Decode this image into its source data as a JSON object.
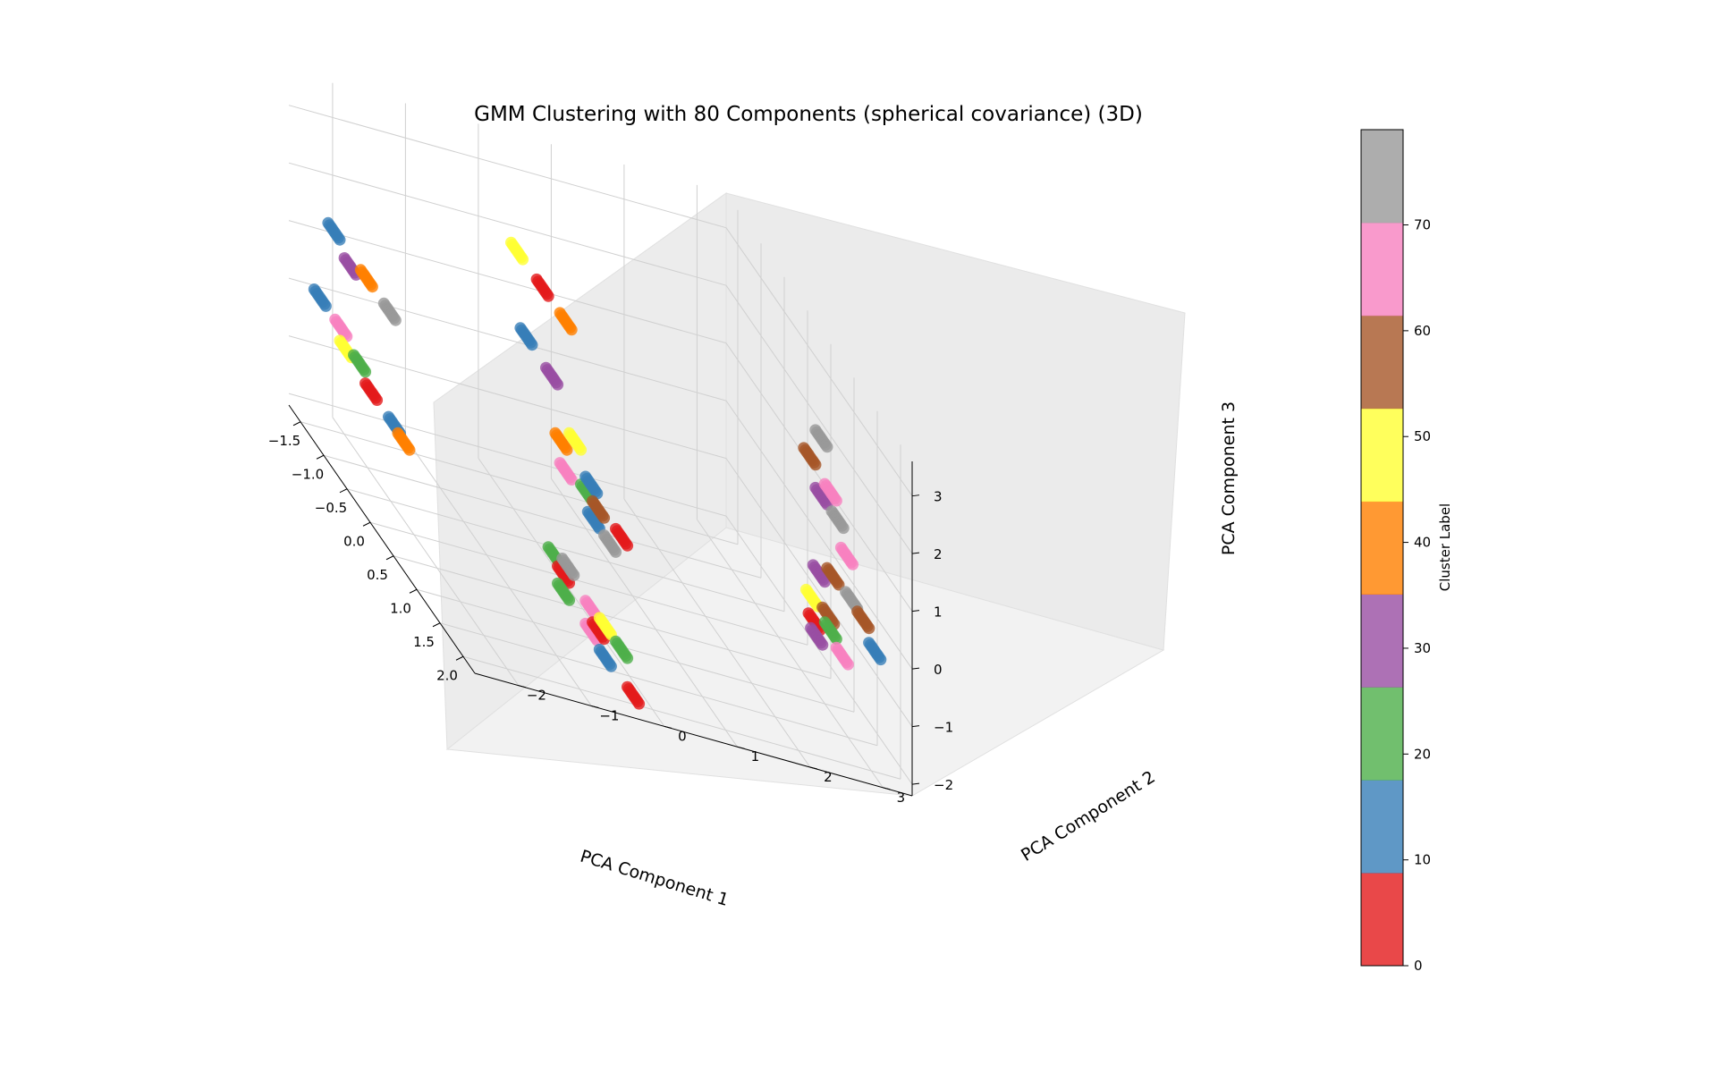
{
  "chart_data": {
    "type": "scatter",
    "projection": "3d",
    "title": "GMM Clustering with 80 Components (spherical covariance) (3D)",
    "xlabel": "PCA Component 1",
    "ylabel": "PCA Component 2",
    "zlabel": "PCA Component 3",
    "xlim": [
      -1.75,
      2.25
    ],
    "ylim": [
      -2.6,
      3.4
    ],
    "zlim": [
      -2.2,
      3.6
    ],
    "x_ticks": [
      -1.5,
      -1.0,
      -0.5,
      0.0,
      0.5,
      1.0,
      1.5,
      2.0
    ],
    "x_tick_labels": [
      "−1.5",
      "−1.0",
      "−0.5",
      "0.0",
      "0.5",
      "1.0",
      "1.5",
      "2.0"
    ],
    "y_ticks": [
      -2,
      -1,
      0,
      1,
      2,
      3
    ],
    "y_tick_labels": [
      "−2",
      "−1",
      "0",
      "1",
      "2",
      "3"
    ],
    "z_ticks": [
      -2,
      -1,
      0,
      1,
      2,
      3
    ],
    "z_tick_labels": [
      "−2",
      "−1",
      "0",
      "1",
      "2",
      "3"
    ],
    "grid": true,
    "colormap": "Set1",
    "colorbar": {
      "label": "Cluster Label",
      "range": [
        0,
        79
      ],
      "ticks": [
        0,
        10,
        20,
        30,
        40,
        50,
        60,
        70
      ],
      "tick_labels": [
        "0",
        "10",
        "20",
        "30",
        "40",
        "50",
        "60",
        "70"
      ],
      "colors": [
        "#e41a1c",
        "#377eb8",
        "#4daf4a",
        "#984ea3",
        "#ff7f00",
        "#ffff33",
        "#a65628",
        "#f781bf",
        "#999999"
      ]
    },
    "point_alpha": 0.8,
    "segments": [
      {
        "x": -1.25,
        "y": -2.3,
        "z": 1.5,
        "label": 15
      },
      {
        "x": -0.55,
        "y": -2.3,
        "z": 1.5,
        "label": 40
      },
      {
        "x": -0.05,
        "y": -2.3,
        "z": 1.5,
        "label": 75
      },
      {
        "x": -0.9,
        "y": -2.3,
        "z": 1.3,
        "label": 35
      },
      {
        "x": -1.55,
        "y": -2.3,
        "z": 0.0,
        "label": 15
      },
      {
        "x": -1.1,
        "y": -2.3,
        "z": 0.0,
        "label": 65
      },
      {
        "x": -0.7,
        "y": -2.3,
        "z": -0.15,
        "label": 25
      },
      {
        "x": -1.0,
        "y": -2.3,
        "z": -0.25,
        "label": 52
      },
      {
        "x": -0.45,
        "y": -2.3,
        "z": -0.35,
        "label": 5
      },
      {
        "x": 0.05,
        "y": -2.3,
        "z": -0.35,
        "label": 15
      },
      {
        "x": 0.25,
        "y": -2.3,
        "z": -0.4,
        "label": 40
      },
      {
        "x": -0.45,
        "y": -0.3,
        "z": 2.8,
        "label": 52
      },
      {
        "x": 0.1,
        "y": -0.3,
        "z": 2.8,
        "label": 5
      },
      {
        "x": 0.6,
        "y": -0.3,
        "z": 2.8,
        "label": 40
      },
      {
        "x": -0.25,
        "y": -0.3,
        "z": 1.55,
        "label": 15
      },
      {
        "x": 0.3,
        "y": -0.3,
        "z": 1.5,
        "label": 35
      },
      {
        "x": 0.8,
        "y": -0.3,
        "z": 0.95,
        "label": 52
      },
      {
        "x": 0.5,
        "y": -0.3,
        "z": 0.6,
        "label": 40
      },
      {
        "x": 1.15,
        "y": -0.3,
        "z": 0.6,
        "label": 15
      },
      {
        "x": 1.05,
        "y": -0.3,
        "z": 0.35,
        "label": 25
      },
      {
        "x": 0.6,
        "y": -0.3,
        "z": 0.2,
        "label": 65
      },
      {
        "x": 1.3,
        "y": -0.3,
        "z": 0.35,
        "label": 60
      },
      {
        "x": 1.8,
        "y": -0.3,
        "z": 0.45,
        "label": 5
      },
      {
        "x": 1.2,
        "y": -0.3,
        "z": 0.05,
        "label": 15
      },
      {
        "x": 1.55,
        "y": -0.3,
        "z": 0.05,
        "label": 75
      },
      {
        "x": 0.65,
        "y": -0.3,
        "z": -1.4,
        "label": 75
      },
      {
        "x": 0.35,
        "y": -0.3,
        "z": -1.55,
        "label": 25
      },
      {
        "x": 1.15,
        "y": -0.3,
        "z": -1.55,
        "label": 65
      },
      {
        "x": 1.45,
        "y": -0.3,
        "z": -1.5,
        "label": 52
      },
      {
        "x": 0.55,
        "y": -0.3,
        "z": -1.65,
        "label": 5
      },
      {
        "x": 0.55,
        "y": -0.3,
        "z": -1.95,
        "label": 25
      },
      {
        "x": 1.3,
        "y": -0.3,
        "z": -1.75,
        "label": 5
      },
      {
        "x": 1.15,
        "y": -0.3,
        "z": -1.95,
        "label": 65
      },
      {
        "x": 1.45,
        "y": -0.3,
        "z": -2.05,
        "label": 15
      },
      {
        "x": 1.8,
        "y": -0.3,
        "z": -1.5,
        "label": 25
      },
      {
        "x": 2.05,
        "y": -0.3,
        "z": -2.0,
        "label": 5
      },
      {
        "x": 1.55,
        "y": 2.6,
        "z": 2.9,
        "label": 75
      },
      {
        "x": 1.3,
        "y": 2.6,
        "z": 2.3,
        "label": 60
      },
      {
        "x": 1.75,
        "y": 2.6,
        "z": 2.2,
        "label": 65
      },
      {
        "x": 1.55,
        "y": 2.6,
        "z": 1.9,
        "label": 35
      },
      {
        "x": 1.9,
        "y": 2.6,
        "z": 1.9,
        "label": 75
      },
      {
        "x": 2.1,
        "y": 2.6,
        "z": 1.5,
        "label": 65
      },
      {
        "x": 1.8,
        "y": 2.6,
        "z": 0.8,
        "label": 60
      },
      {
        "x": 2.2,
        "y": 2.6,
        "z": 0.85,
        "label": 75
      },
      {
        "x": 2.45,
        "y": 2.6,
        "z": 0.8,
        "label": 60
      },
      {
        "x": 2.7,
        "y": 2.6,
        "z": 0.55,
        "label": 15
      },
      {
        "x": 1.5,
        "y": 2.6,
        "z": 0.5,
        "label": 35
      },
      {
        "x": 1.35,
        "y": 2.6,
        "z": -0.1,
        "label": 52
      },
      {
        "x": 1.7,
        "y": 2.6,
        "z": 0.0,
        "label": 60
      },
      {
        "x": 1.4,
        "y": 2.6,
        "z": -0.45,
        "label": 5
      },
      {
        "x": 1.75,
        "y": 2.6,
        "z": -0.2,
        "label": 25
      },
      {
        "x": 2.0,
        "y": 2.6,
        "z": -0.35,
        "label": 65
      },
      {
        "x": 1.45,
        "y": 2.6,
        "z": -0.65,
        "label": 35
      }
    ]
  }
}
